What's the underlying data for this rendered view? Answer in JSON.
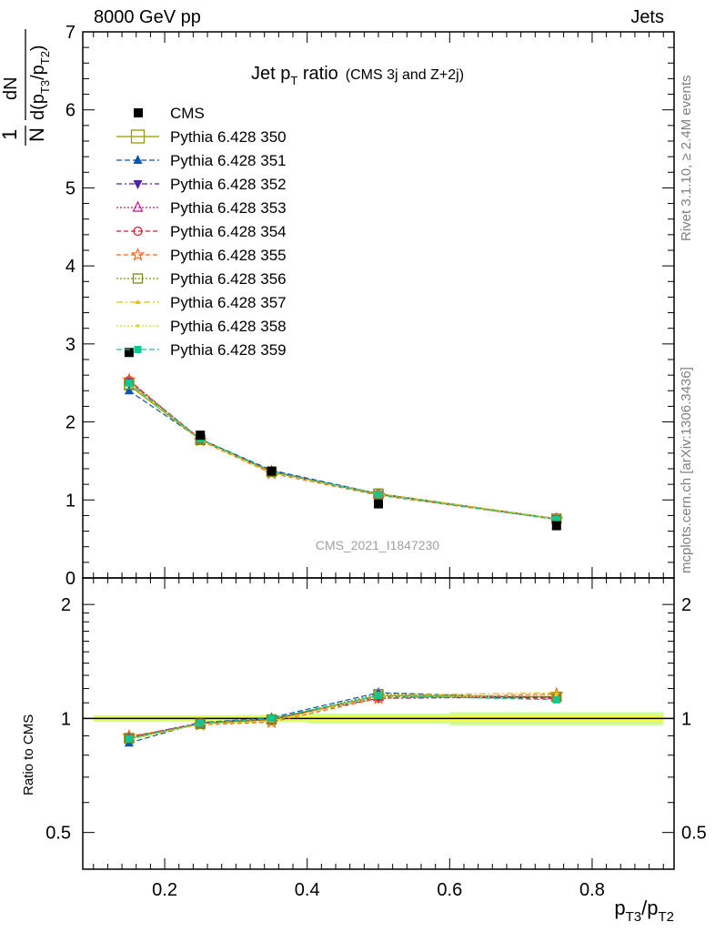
{
  "header": {
    "left": "8000 GeV pp",
    "right": "Jets"
  },
  "side_labels": {
    "rivet": "Rivet 3.1.10, ≥ 2.4M events",
    "mcplots": "mcplots.cern.ch [arXiv:1306.3436]"
  },
  "watermark": "CMS_2021_I1847230",
  "colors": {
    "cms": "#000000",
    "band_inner": "#f5ff40",
    "band_outer": "#ccff99"
  },
  "chart_data": [
    {
      "type": "line",
      "title_main": "Jet p",
      "title_sub_T": "T",
      "title_rest": " ratio",
      "title_small": "(CMS 3j and Z+2j)",
      "ylabel_num": "dN",
      "ylabel_frac": "1",
      "ylabel_den_N": "N",
      "ylabel_den_d": "d(p",
      "ylabel_den_sub1": "T3",
      "ylabel_den_mid": "/p",
      "ylabel_den_sub2": "T2",
      "ylabel_den_close": ")",
      "xlim": [
        0.085,
        0.915
      ],
      "ylim": [
        0,
        7
      ],
      "yticks": [
        0,
        1,
        2,
        3,
        4,
        5,
        6,
        7
      ],
      "ytick_labels": [
        "0",
        "1",
        "2",
        "3",
        "4",
        "5",
        "6",
        "7"
      ],
      "x": [
        0.15,
        0.25,
        0.35,
        0.5,
        0.75
      ],
      "data": {
        "name": "CMS",
        "values": [
          2.89,
          1.83,
          1.37,
          0.95,
          0.67
        ]
      },
      "series": [
        {
          "name": "Pythia 6.428 350",
          "color": "#999900",
          "dash": "",
          "marker": "square-open",
          "values": [
            2.47,
            1.77,
            1.36,
            1.08,
            0.76
          ]
        },
        {
          "name": "Pythia 6.428 351",
          "color": "#0b56b5",
          "dash": "6,3",
          "marker": "triangle",
          "values": [
            2.4,
            1.78,
            1.38,
            1.08,
            0.76
          ]
        },
        {
          "name": "Pythia 6.428 352",
          "color": "#5022a8",
          "dash": "6,3,2,3",
          "marker": "triangle-down",
          "values": [
            2.52,
            1.78,
            1.37,
            1.07,
            0.76
          ]
        },
        {
          "name": "Pythia 6.428 353",
          "color": "#c0138a",
          "dash": "2,2",
          "marker": "triangle-open",
          "values": [
            2.53,
            1.77,
            1.36,
            1.07,
            0.76
          ]
        },
        {
          "name": "Pythia 6.428 354",
          "color": "#e0112a",
          "dash": "5,3",
          "marker": "circle-open",
          "values": [
            2.53,
            1.78,
            1.36,
            1.07,
            0.75
          ]
        },
        {
          "name": "Pythia 6.428 355",
          "color": "#f06410",
          "dash": "5,3",
          "marker": "star-open",
          "values": [
            2.54,
            1.76,
            1.34,
            1.06,
            0.75
          ]
        },
        {
          "name": "Pythia 6.428 356",
          "color": "#7a8f10",
          "dash": "2,2",
          "marker": "square-open",
          "values": [
            2.48,
            1.77,
            1.36,
            1.08,
            0.76
          ]
        },
        {
          "name": "Pythia 6.428 357",
          "color": "#e0c010",
          "dash": "7,3,2,3",
          "marker": "tri-small",
          "values": [
            2.49,
            1.77,
            1.35,
            1.08,
            0.76
          ]
        },
        {
          "name": "Pythia 6.428 358",
          "color": "#c8e020",
          "dash": "2,2",
          "marker": "dot",
          "values": [
            2.49,
            1.77,
            1.35,
            1.07,
            0.76
          ]
        },
        {
          "name": "Pythia 6.428 359",
          "color": "#10c890",
          "dash": "6,3",
          "marker": "square-fill",
          "values": [
            2.5,
            1.78,
            1.37,
            1.07,
            0.75
          ]
        }
      ]
    },
    {
      "type": "line",
      "ylabel": "Ratio to CMS",
      "xlabel_p": "p",
      "xlabel_sub1": "T3",
      "xlabel_slash": "/p",
      "xlabel_sub2": "T2",
      "xlim": [
        0.085,
        0.915
      ],
      "ylim": [
        0.4,
        2.35
      ],
      "log_y": true,
      "xticks": [
        0.2,
        0.4,
        0.6,
        0.8
      ],
      "xtick_labels": [
        "0.2",
        "0.4",
        "0.6",
        "0.8"
      ],
      "yticks": [
        0.5,
        1,
        2
      ],
      "ytick_labels": [
        "0.5",
        "1",
        "2"
      ],
      "band": {
        "x_edges": [
          0.1,
          0.2,
          0.3,
          0.4,
          0.6,
          0.9
        ],
        "inner": [
          0.012,
          0.012,
          0.013,
          0.016,
          0.02
        ],
        "outer": [
          0.02,
          0.02,
          0.022,
          0.03,
          0.04
        ]
      },
      "x": [
        0.15,
        0.25,
        0.35,
        0.5,
        0.75
      ],
      "series": [
        {
          "name": "Pythia 6.428 350",
          "values": [
            0.885,
            0.968,
            0.994,
            1.15,
            1.14
          ]
        },
        {
          "name": "Pythia 6.428 351",
          "values": [
            0.862,
            0.975,
            1.005,
            1.17,
            1.13
          ]
        },
        {
          "name": "Pythia 6.428 352",
          "values": [
            0.89,
            0.975,
            0.998,
            1.13,
            1.14
          ]
        },
        {
          "name": "Pythia 6.428 353",
          "values": [
            0.895,
            0.97,
            0.993,
            1.14,
            1.14
          ]
        },
        {
          "name": "Pythia 6.428 354",
          "values": [
            0.893,
            0.972,
            0.995,
            1.14,
            1.13
          ]
        },
        {
          "name": "Pythia 6.428 355",
          "values": [
            0.898,
            0.962,
            0.978,
            1.13,
            1.16
          ]
        },
        {
          "name": "Pythia 6.428 356",
          "values": [
            0.888,
            0.968,
            0.994,
            1.16,
            1.14
          ]
        },
        {
          "name": "Pythia 6.428 357",
          "values": [
            0.88,
            0.966,
            0.985,
            1.15,
            1.17
          ]
        },
        {
          "name": "Pythia 6.428 358",
          "values": [
            0.882,
            0.967,
            0.986,
            1.14,
            1.15
          ]
        },
        {
          "name": "Pythia 6.428 359",
          "values": [
            0.885,
            0.972,
            1.0,
            1.15,
            1.12
          ]
        }
      ]
    }
  ]
}
